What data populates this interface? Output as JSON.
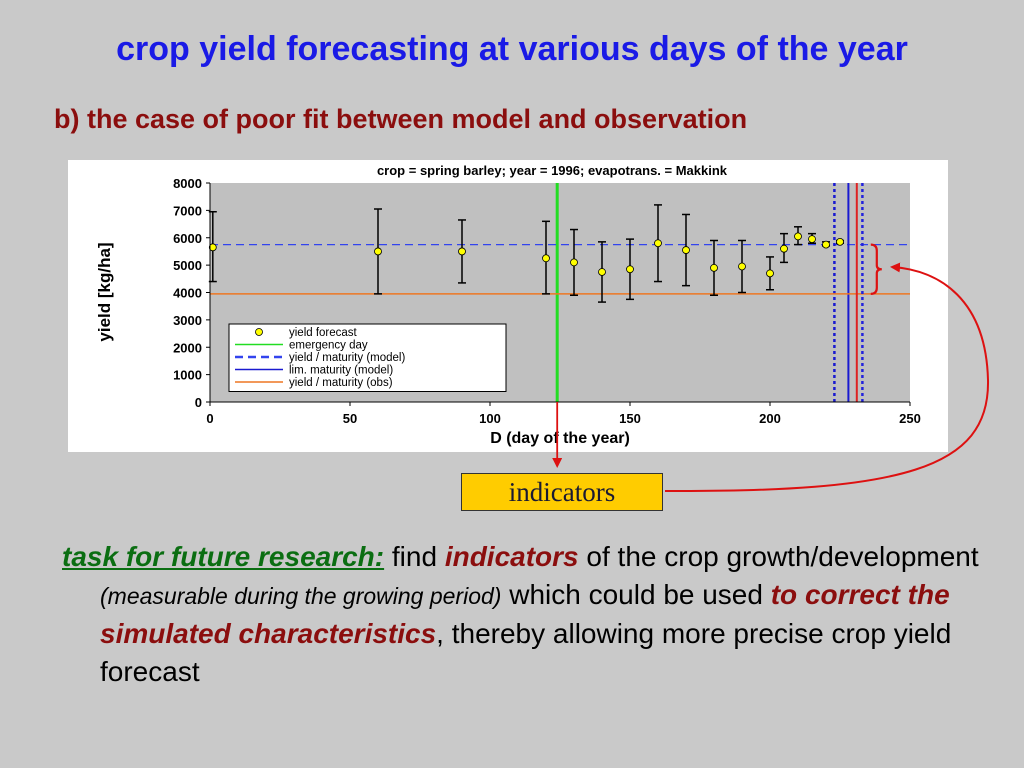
{
  "slide": {
    "title": "crop yield forecasting at various days of the year",
    "subtitle": "b) the case of poor fit between model and observation",
    "indicator_box": "indicators",
    "body": {
      "lead": "task for future research:",
      "t1": " find ",
      "em1": "indicators",
      "t2": " of the crop growth/development ",
      "paren": "(measurable during the growing period)",
      "t3": " which could be used ",
      "em2": "to correct the simulated characteristics",
      "t4": ", thereby allowing more precise crop yield forecast"
    }
  },
  "chart_data": {
    "type": "scatter",
    "title": "crop = spring barley; year = 1996; evapotrans. = Makkink",
    "xlabel": "D  (day of the year)",
    "ylabel": "yield  [kg/ha]",
    "xlim": [
      0,
      250
    ],
    "ylim": [
      0,
      8000
    ],
    "xticks": [
      0,
      50,
      100,
      150,
      200,
      250
    ],
    "yticks": [
      0,
      1000,
      2000,
      3000,
      4000,
      5000,
      6000,
      7000,
      8000
    ],
    "grid": false,
    "legend_position": "bottom-left",
    "series": [
      {
        "name": "yield forecast",
        "kind": "points-with-errorbars",
        "color": "#ffff00",
        "points": [
          {
            "x": 1,
            "y": 5650,
            "lo": 4400,
            "hi": 6950
          },
          {
            "x": 60,
            "y": 5500,
            "lo": 3950,
            "hi": 7050
          },
          {
            "x": 90,
            "y": 5500,
            "lo": 4350,
            "hi": 6650
          },
          {
            "x": 120,
            "y": 5250,
            "lo": 3950,
            "hi": 6600
          },
          {
            "x": 130,
            "y": 5100,
            "lo": 3900,
            "hi": 6300
          },
          {
            "x": 140,
            "y": 4750,
            "lo": 3650,
            "hi": 5850
          },
          {
            "x": 150,
            "y": 4850,
            "lo": 3750,
            "hi": 5950
          },
          {
            "x": 160,
            "y": 5800,
            "lo": 4400,
            "hi": 7200
          },
          {
            "x": 170,
            "y": 5550,
            "lo": 4250,
            "hi": 6850
          },
          {
            "x": 180,
            "y": 4900,
            "lo": 3900,
            "hi": 5900
          },
          {
            "x": 190,
            "y": 4950,
            "lo": 4000,
            "hi": 5900
          },
          {
            "x": 200,
            "y": 4700,
            "lo": 4100,
            "hi": 5300
          },
          {
            "x": 205,
            "y": 5600,
            "lo": 5100,
            "hi": 6150
          },
          {
            "x": 210,
            "y": 6050,
            "lo": 5750,
            "hi": 6400
          },
          {
            "x": 215,
            "y": 5950,
            "lo": 5800,
            "hi": 6150
          },
          {
            "x": 220,
            "y": 5750,
            "lo": 5700,
            "hi": 5850
          },
          {
            "x": 225,
            "y": 5850,
            "lo": 5800,
            "hi": 5900
          }
        ]
      },
      {
        "name": "emergency day",
        "kind": "vline",
        "x": 124,
        "color": "#22dd22",
        "style": "solid"
      },
      {
        "name": "yield / maturity (model)",
        "kind": "hline",
        "y": 5750,
        "color": "#3344ee",
        "style": "dashed"
      },
      {
        "name": "yield / maturity (model)",
        "kind": "vline",
        "x": 223,
        "color": "#1a1ad0",
        "style": "dotted"
      },
      {
        "name": "lim. maturity (model)",
        "kind": "vline",
        "x": 228,
        "color": "#1a1ad0",
        "style": "solid"
      },
      {
        "name": "yield / maturity (obs)",
        "kind": "hline",
        "y": 3950,
        "color": "#ee7722",
        "style": "solid"
      },
      {
        "name": "yield / maturity (obs)",
        "kind": "vline",
        "x": 231,
        "color": "#dd2222",
        "style": "solid"
      },
      {
        "name": "yield / maturity (obs)",
        "kind": "vline",
        "x": 233,
        "color": "#2222dd",
        "style": "dotted"
      }
    ],
    "legend": [
      {
        "label": "yield forecast",
        "marker": "circle",
        "color": "#ffff00"
      },
      {
        "label": "emergency day",
        "marker": "line",
        "color": "#22dd22",
        "style": "solid"
      },
      {
        "label": "yield / maturity (model)",
        "marker": "line",
        "color": "#3344ee",
        "style": "dashed"
      },
      {
        "label": "lim. maturity (model)",
        "marker": "line",
        "color": "#1a1ad0",
        "style": "solid"
      },
      {
        "label": "yield / maturity (obs)",
        "marker": "line",
        "color": "#ee7722",
        "style": "solid"
      }
    ],
    "annotations": {
      "brace": {
        "x": 246,
        "from": 3950,
        "to": 5750,
        "color": "#dd1111"
      }
    }
  }
}
